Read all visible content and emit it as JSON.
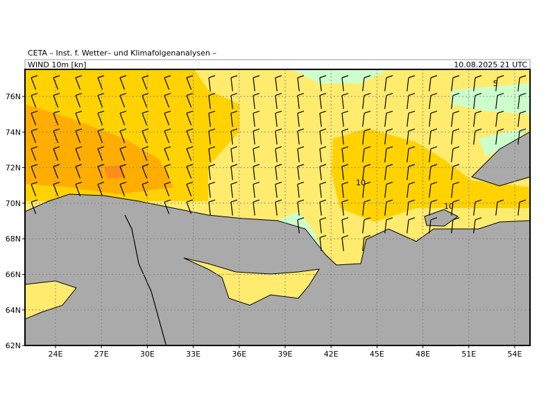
{
  "header": {
    "institute": "CETA – Inst. f. Wetter– und Klimafolgenanalysen –",
    "field": "WIND 10m [kn]",
    "valid": "10.08.2025 21 UTC"
  },
  "map": {
    "lat_labels": [
      "76N",
      "74N",
      "72N",
      "70N",
      "68N",
      "66N",
      "64N",
      "62N"
    ],
    "lon_labels": [
      "24E",
      "27E",
      "30E",
      "33E",
      "36E",
      "39E",
      "42E",
      "45E",
      "48E",
      "51E",
      "54E"
    ],
    "contour_labels": [
      "10",
      "10",
      "5"
    ]
  }
}
